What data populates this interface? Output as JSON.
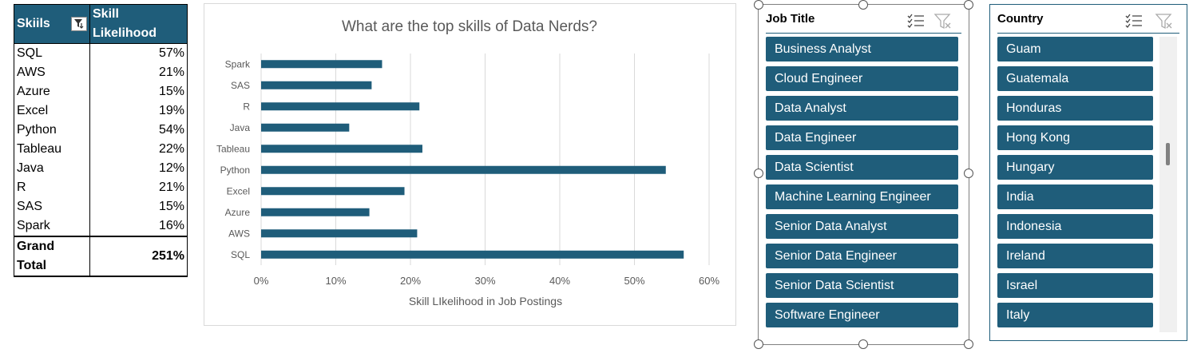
{
  "pivot": {
    "headers": [
      "Skiils",
      "Skill Likelihood"
    ],
    "rows": [
      {
        "skill": "SQL",
        "value": "57%"
      },
      {
        "skill": "AWS",
        "value": "21%"
      },
      {
        "skill": "Azure",
        "value": "15%"
      },
      {
        "skill": "Excel",
        "value": "19%"
      },
      {
        "skill": "Python",
        "value": "54%"
      },
      {
        "skill": "Tableau",
        "value": "22%"
      },
      {
        "skill": "Java",
        "value": "12%"
      },
      {
        "skill": "R",
        "value": "21%"
      },
      {
        "skill": "SAS",
        "value": "15%"
      },
      {
        "skill": "Spark",
        "value": "16%"
      }
    ],
    "total_label": "Grand Total",
    "total_value": "251%",
    "filter_icon": "filter-sort-icon"
  },
  "chart_data": {
    "type": "bar",
    "orientation": "horizontal",
    "title": "What are the top skills of Data Nerds?",
    "xlabel": "Skill LIkelihood in Job Postings",
    "ylabel": "",
    "categories": [
      "SQL",
      "AWS",
      "Azure",
      "Excel",
      "Python",
      "Tableau",
      "Java",
      "R",
      "SAS",
      "Spark"
    ],
    "values": [
      0.566,
      0.209,
      0.145,
      0.192,
      0.542,
      0.216,
      0.118,
      0.212,
      0.148,
      0.162
    ],
    "xlim": [
      0,
      0.6
    ],
    "xticks": [
      "0%",
      "10%",
      "20%",
      "30%",
      "40%",
      "50%",
      "60%"
    ],
    "grid": "vertical",
    "bar_color": "#1f5d7a"
  },
  "slicer_job": {
    "title": "Job Title",
    "items": [
      "Business Analyst",
      "Cloud Engineer",
      "Data Analyst",
      "Data Engineer",
      "Data Scientist",
      "Machine Learning Engineer",
      "Senior Data Analyst",
      "Senior Data Engineer",
      "Senior Data Scientist",
      "Software Engineer"
    ],
    "icons": [
      "multi-select-icon",
      "clear-filter-icon"
    ]
  },
  "slicer_country": {
    "title": "Country",
    "items": [
      "Guam",
      "Guatemala",
      "Honduras",
      "Hong Kong",
      "Hungary",
      "India",
      "Indonesia",
      "Ireland",
      "Israel",
      "Italy"
    ],
    "icons": [
      "multi-select-icon",
      "clear-filter-icon"
    ]
  },
  "colors": {
    "accent": "#1f5d7a",
    "grid": "#d9d9d9"
  }
}
